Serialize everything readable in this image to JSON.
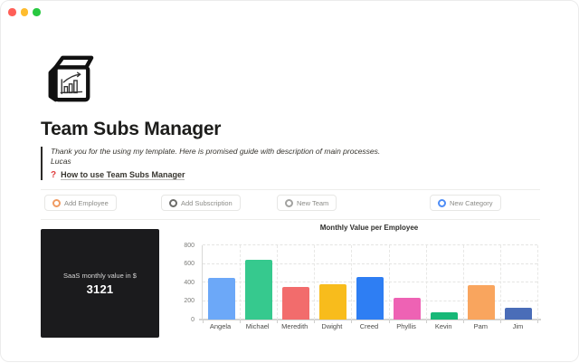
{
  "window": {
    "traffic_lights": [
      "#ff5f57",
      "#febc2e",
      "#28c840"
    ]
  },
  "page": {
    "icon": "cube-bar-chart-icon",
    "title": "Team Subs Manager",
    "quote": {
      "line1": "Thank you for the using my template. Here is promised guide with description of main processes.",
      "line2": "Lucas"
    },
    "guide_link": {
      "icon": "?",
      "label": "How to use Team Subs Manager"
    }
  },
  "toolbar": {
    "buttons": [
      {
        "label": "Add Employee",
        "icon": "gear-ring-icon",
        "icon_color": "#f09b62"
      },
      {
        "label": "Add Subscription",
        "icon": "gear-ring-icon",
        "icon_color": "#6d6d6a"
      },
      {
        "label": "New Team",
        "icon": "gear-ring-icon",
        "icon_color": "#a2a2a0"
      },
      {
        "label": "New Category",
        "icon": "gear-ring-icon",
        "icon_color": "#4e8df6"
      }
    ]
  },
  "kpi_card": {
    "label": "SaaS monthly value in $",
    "value": "3121",
    "bg_color": "#1b1b1d"
  },
  "chart_data": {
    "type": "bar",
    "title": "Monthly Value per Employee",
    "categories": [
      "Angela",
      "Michael",
      "Meredith",
      "Dwight",
      "Creed",
      "Phyllis",
      "Kevin",
      "Pam",
      "Jim"
    ],
    "values": [
      450,
      640,
      350,
      380,
      455,
      230,
      80,
      370,
      130
    ],
    "colors": [
      "#6ca8f8",
      "#36c98e",
      "#f26c6c",
      "#f8bc1c",
      "#2e7ef3",
      "#ee62b4",
      "#17b877",
      "#f9a55e",
      "#4a6db8"
    ],
    "xlabel": "",
    "ylabel": "",
    "ylim": [
      0,
      800
    ],
    "yticks": [
      0,
      200,
      400,
      600,
      800
    ],
    "grid": "dashed-h-and-v",
    "legend": "none"
  }
}
